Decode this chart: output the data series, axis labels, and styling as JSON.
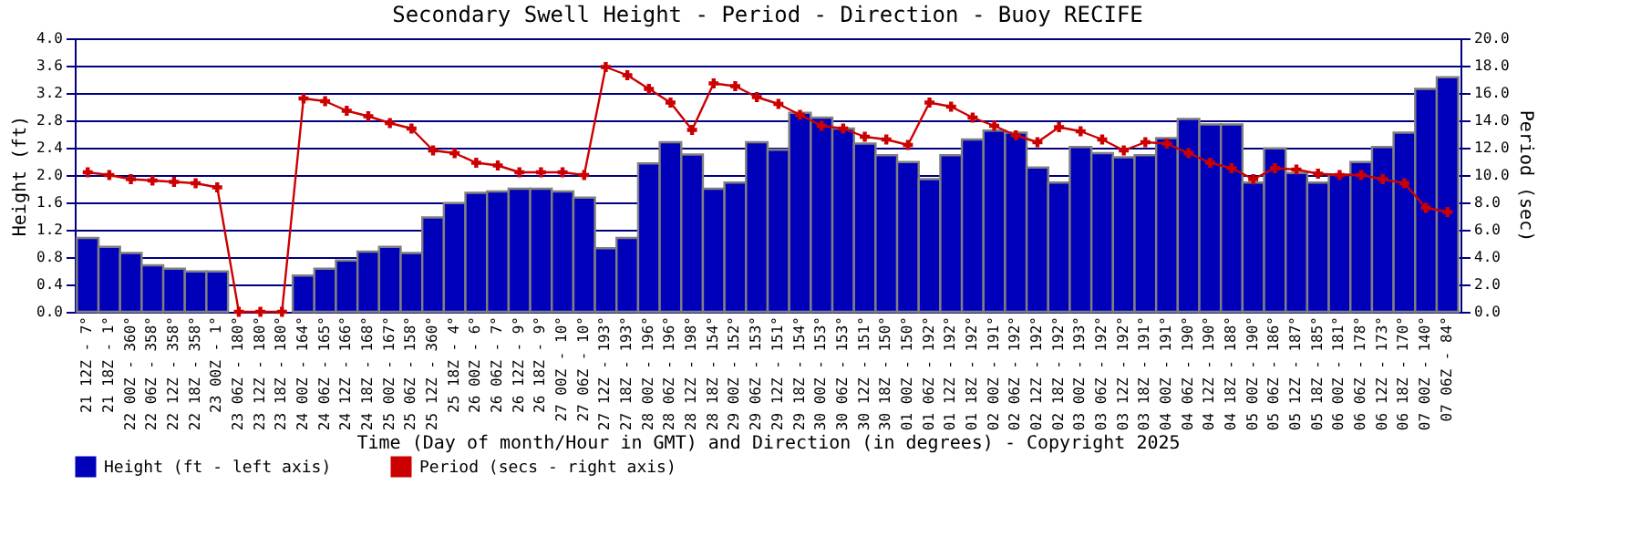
{
  "chart_data": {
    "type": "bar",
    "title": "Secondary Swell Height - Period - Direction - Buoy RECIFE",
    "xlabel": "Time (Day of month/Hour in GMT) and Direction (in degrees) - Copyright 2025",
    "ylabel": "Height (ft)",
    "y2label": "Period (sec)",
    "categories": [
      "21 12Z - 7°",
      "21 18Z - 1°",
      "22 00Z - 360°",
      "22 06Z - 358°",
      "22 12Z - 358°",
      "22 18Z - 358°",
      "23 00Z - 1°",
      "23 06Z - 180°",
      "23 12Z - 180°",
      "23 18Z - 180°",
      "24 00Z - 164°",
      "24 06Z - 165°",
      "24 12Z - 166°",
      "24 18Z - 168°",
      "25 00Z - 167°",
      "25 06Z - 158°",
      "25 12Z - 360°",
      "25 18Z - 4°",
      "26 00Z - 6°",
      "26 06Z - 7°",
      "26 12Z - 9°",
      "26 18Z - 9°",
      "27 00Z - 10°",
      "27 06Z - 10°",
      "27 12Z - 193°",
      "27 18Z - 193°",
      "28 00Z - 196°",
      "28 06Z - 196°",
      "28 12Z - 198°",
      "28 18Z - 154°",
      "29 00Z - 152°",
      "29 06Z - 153°",
      "29 12Z - 151°",
      "29 18Z - 154°",
      "30 00Z - 153°",
      "30 06Z - 153°",
      "30 12Z - 151°",
      "30 18Z - 150°",
      "01 00Z - 150°",
      "01 06Z - 192°",
      "01 12Z - 192°",
      "01 18Z - 192°",
      "02 00Z - 191°",
      "02 06Z - 192°",
      "02 12Z - 192°",
      "02 18Z - 192°",
      "03 00Z - 193°",
      "03 06Z - 192°",
      "03 12Z - 192°",
      "03 18Z - 191°",
      "04 00Z - 191°",
      "04 06Z - 190°",
      "04 12Z - 190°",
      "04 18Z - 188°",
      "05 00Z - 190°",
      "05 06Z - 186°",
      "05 12Z - 187°",
      "05 18Z - 185°",
      "06 00Z - 181°",
      "06 06Z - 178°",
      "06 12Z - 173°",
      "06 18Z - 170°",
      "07 00Z - 140°",
      "07 06Z - 84°"
    ],
    "series": [
      {
        "name": "Height (ft - left axis)",
        "color": "#0000bb",
        "values": [
          1.08,
          0.95,
          0.86,
          0.68,
          0.63,
          0.59,
          0.59,
          0,
          0,
          0,
          0.53,
          0.63,
          0.75,
          0.88,
          0.95,
          0.86,
          1.38,
          1.59,
          1.74,
          1.76,
          1.8,
          1.8,
          1.76,
          1.67,
          0.93,
          1.08,
          2.17,
          2.48,
          2.3,
          1.8,
          1.89,
          2.48,
          2.37,
          2.91,
          2.84,
          2.68,
          2.46,
          2.29,
          2.19,
          1.94,
          2.29,
          2.52,
          2.65,
          2.62,
          2.11,
          1.89,
          2.41,
          2.32,
          2.26,
          2.29,
          2.54,
          2.82,
          2.74,
          2.74,
          1.89,
          2.39,
          2.03,
          1.89,
          2.01,
          2.19,
          2.41,
          2.62,
          3.26,
          3.43
        ]
      },
      {
        "name": "Period (secs - right axis)",
        "type": "line",
        "axis": "y2",
        "color": "#cc0000",
        "marker": "cross",
        "values": [
          10.2,
          10.0,
          9.7,
          9.6,
          9.5,
          9.4,
          9.1,
          0,
          0,
          0,
          15.6,
          15.4,
          14.7,
          14.3,
          13.8,
          13.4,
          11.8,
          11.6,
          10.9,
          10.7,
          10.2,
          10.2,
          10.2,
          10.0,
          17.9,
          17.3,
          16.3,
          15.3,
          13.3,
          16.7,
          16.5,
          15.7,
          15.2,
          14.4,
          13.6,
          13.4,
          12.8,
          12.6,
          12.2,
          15.3,
          15.0,
          14.2,
          13.6,
          12.9,
          12.4,
          13.5,
          13.2,
          12.6,
          11.8,
          12.4,
          12.3,
          11.6,
          10.9,
          10.5,
          9.7,
          10.5,
          10.4,
          10.1,
          10.0,
          10.0,
          9.7,
          9.4,
          7.6,
          7.3
        ]
      }
    ],
    "ylim": [
      0,
      4
    ],
    "yticks": [
      {
        "value": 0,
        "label": "0.0"
      },
      {
        "value": 0.4,
        "label": "0.4"
      },
      {
        "value": 0.8,
        "label": "0.8"
      },
      {
        "value": 1.2,
        "label": "1.2"
      },
      {
        "value": 1.6,
        "label": "1.6"
      },
      {
        "value": 2,
        "label": "2.0"
      },
      {
        "value": 2.4,
        "label": "2.4"
      },
      {
        "value": 2.8,
        "label": "2.8"
      },
      {
        "value": 3.2,
        "label": "3.2"
      },
      {
        "value": 3.6,
        "label": "3.6"
      },
      {
        "value": 4,
        "label": "4.0"
      }
    ],
    "y2lim": [
      0,
      20
    ],
    "y2ticks": [
      {
        "value": 0,
        "label": "0.0"
      },
      {
        "value": 2,
        "label": "2.0"
      },
      {
        "value": 4,
        "label": "4.0"
      },
      {
        "value": 6,
        "label": "6.0"
      },
      {
        "value": 8,
        "label": "8.0"
      },
      {
        "value": 10,
        "label": "10.0"
      },
      {
        "value": 12,
        "label": "12.0"
      },
      {
        "value": 14,
        "label": "14.0"
      },
      {
        "value": 16,
        "label": "16.0"
      },
      {
        "value": 18,
        "label": "18.0"
      },
      {
        "value": 20,
        "label": "20.0"
      }
    ],
    "grid": "y",
    "legend": "bottom"
  }
}
